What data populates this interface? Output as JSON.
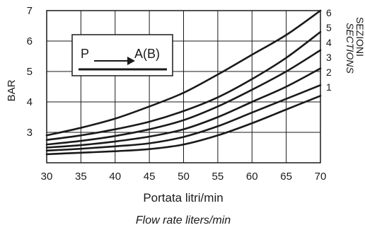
{
  "chart_data": {
    "type": "line",
    "xlabel": "Portata litri/min",
    "xlabel_sub": "Flow rate liters/min",
    "ylabel": "BAR",
    "xlim": [
      30,
      70
    ],
    "ylim": [
      2,
      7
    ],
    "x_ticks": [
      "30",
      "35",
      "40",
      "45",
      "50",
      "55",
      "60",
      "65",
      "70"
    ],
    "y_ticks": [
      "3",
      "4",
      "5",
      "6",
      "7"
    ],
    "grid": true,
    "series_axis_label": "SEZIONI",
    "series_axis_label_sub": "SECTIONS",
    "legend_box": {
      "from": "P",
      "to": "A(B)"
    },
    "series": [
      {
        "name": "1",
        "x": [
          30,
          35,
          40,
          45,
          50,
          55,
          60,
          65,
          70
        ],
        "values": [
          2.28,
          2.33,
          2.38,
          2.45,
          2.6,
          2.9,
          3.3,
          3.75,
          4.2
        ]
      },
      {
        "name": "2",
        "x": [
          30,
          35,
          40,
          45,
          50,
          55,
          60,
          65,
          70
        ],
        "values": [
          2.4,
          2.46,
          2.54,
          2.64,
          2.85,
          3.2,
          3.65,
          4.1,
          4.55
        ]
      },
      {
        "name": "3",
        "x": [
          30,
          35,
          40,
          45,
          50,
          55,
          60,
          65,
          70
        ],
        "values": [
          2.5,
          2.58,
          2.7,
          2.86,
          3.1,
          3.5,
          4.0,
          4.5,
          5.1
        ]
      },
      {
        "name": "4",
        "x": [
          30,
          35,
          40,
          45,
          50,
          55,
          60,
          65,
          70
        ],
        "values": [
          2.6,
          2.72,
          2.88,
          3.1,
          3.4,
          3.85,
          4.4,
          5.0,
          5.7
        ]
      },
      {
        "name": "5",
        "x": [
          30,
          35,
          40,
          45,
          50,
          55,
          60,
          65,
          70
        ],
        "values": [
          2.75,
          2.9,
          3.1,
          3.35,
          3.7,
          4.15,
          4.75,
          5.45,
          6.3
        ]
      },
      {
        "name": "6",
        "x": [
          30,
          35,
          40,
          45,
          50,
          55,
          60,
          65,
          70
        ],
        "values": [
          2.9,
          3.15,
          3.45,
          3.85,
          4.3,
          4.9,
          5.55,
          6.2,
          7.0
        ]
      }
    ]
  }
}
